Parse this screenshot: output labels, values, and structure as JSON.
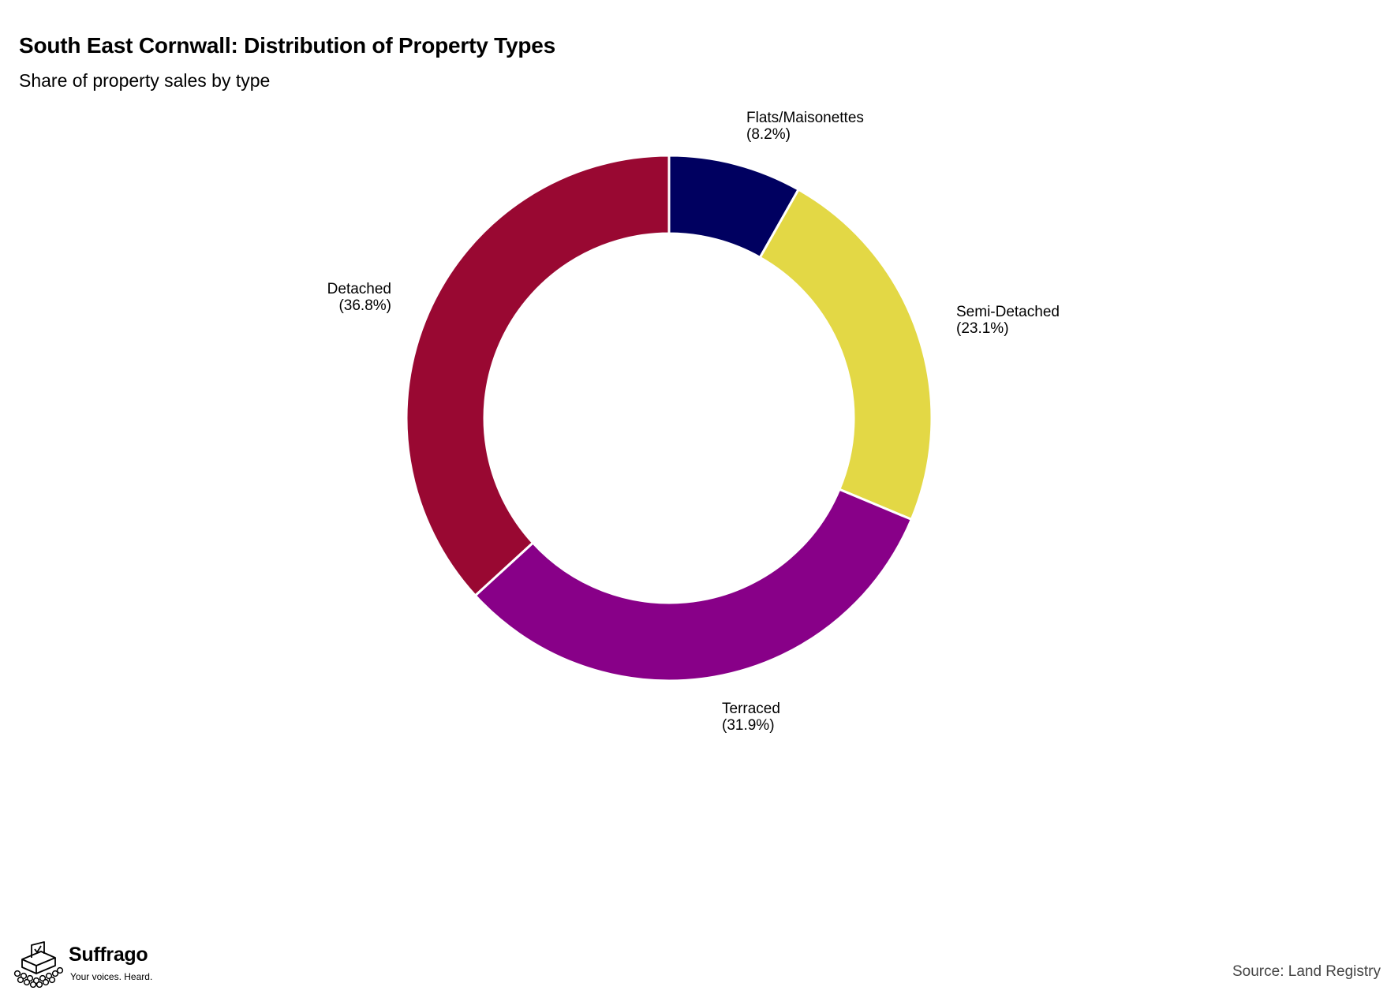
{
  "title": "South East Cornwall: Distribution of Property Types",
  "subtitle": "Share of property sales by type",
  "source": "Source: Land Registry",
  "brand": {
    "name": "Suffrago",
    "tagline": "Your voices. Heard.",
    "icon": "ballot-box-crowd-icon"
  },
  "chart_data": {
    "type": "pie",
    "variant": "donut",
    "title": "South East Cornwall: Distribution of Property Types",
    "subtitle": "Share of property sales by type",
    "unit": "%",
    "slices": [
      {
        "label": "Flats/Maisonettes",
        "value": 8.2,
        "pct_label": "(8.2%)",
        "color": "#000060"
      },
      {
        "label": "Semi-Detached",
        "value": 23.1,
        "pct_label": "(23.1%)",
        "color": "#e3d845"
      },
      {
        "label": "Terraced",
        "value": 31.9,
        "pct_label": "(31.9%)",
        "color": "#880088"
      },
      {
        "label": "Detached",
        "value": 36.8,
        "pct_label": "(36.8%)",
        "color": "#990832"
      }
    ],
    "start_angle": "12 o'clock",
    "direction": "clockwise",
    "legend": "none",
    "labels": "outside"
  }
}
